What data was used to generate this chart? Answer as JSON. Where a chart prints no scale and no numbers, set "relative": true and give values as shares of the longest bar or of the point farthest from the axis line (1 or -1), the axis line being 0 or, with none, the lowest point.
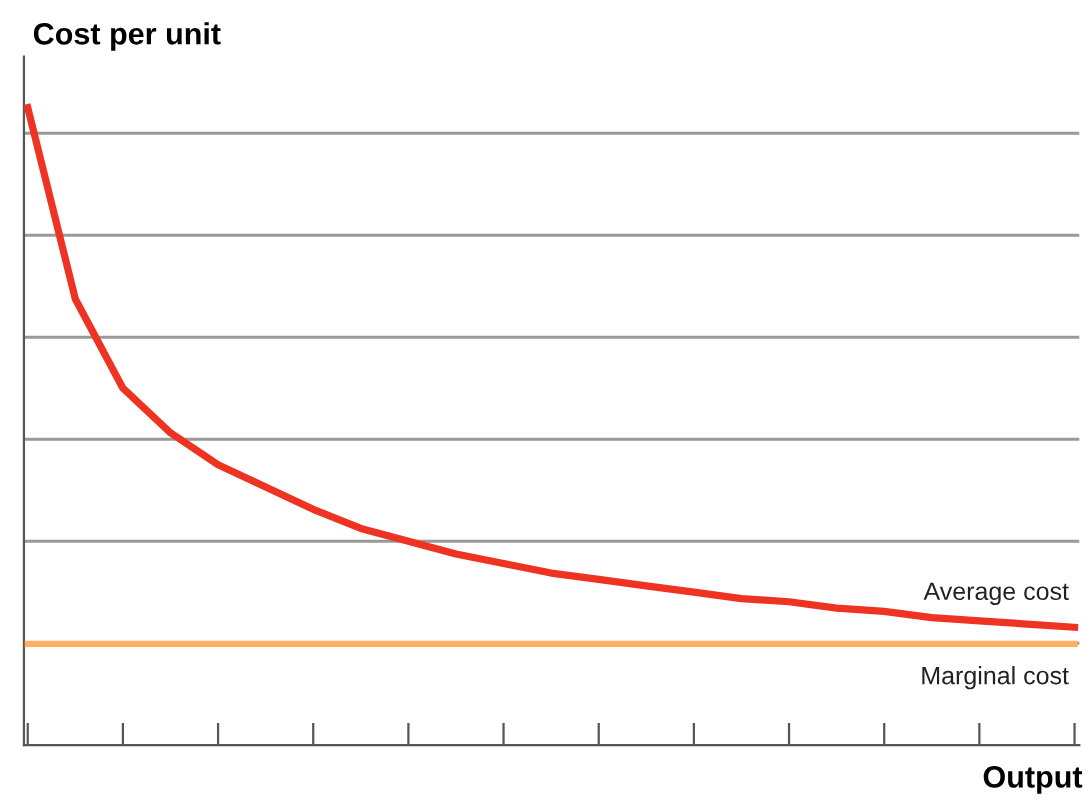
{
  "chart_data": {
    "type": "line",
    "relative": true,
    "xlabel": "Output",
    "ylabel": "Cost per unit",
    "categories": [
      null,
      null,
      null,
      null,
      null,
      null,
      null,
      null,
      null,
      null,
      null,
      null,
      null,
      null,
      null,
      null,
      null,
      null,
      null,
      null,
      null,
      null,
      null
    ],
    "series": [
      {
        "name": "Average cost",
        "color": "#ee3322",
        "values": [
          1,
          0.7,
          0.56,
          0.49,
          0.44,
          0.405,
          0.37,
          0.34,
          0.32,
          0.3,
          0.285,
          0.27,
          0.26,
          0.25,
          0.24,
          0.23,
          0.225,
          0.215,
          0.21,
          0.2,
          0.195,
          0.19,
          0.185
        ]
      },
      {
        "name": "Marginal cost",
        "color": "#ffb060",
        "values": [
          0.159,
          0.159,
          0.159,
          0.159,
          0.159,
          0.159,
          0.159,
          0.159,
          0.159,
          0.159,
          0.159,
          0.159,
          0.159,
          0.159,
          0.159,
          0.159,
          0.159,
          0.159,
          0.159,
          0.159,
          0.159,
          0.159,
          0.159
        ]
      }
    ],
    "grid": "y",
    "legend": false,
    "marker": "none",
    "line_style": "solid",
    "tick_labels": false
  }
}
